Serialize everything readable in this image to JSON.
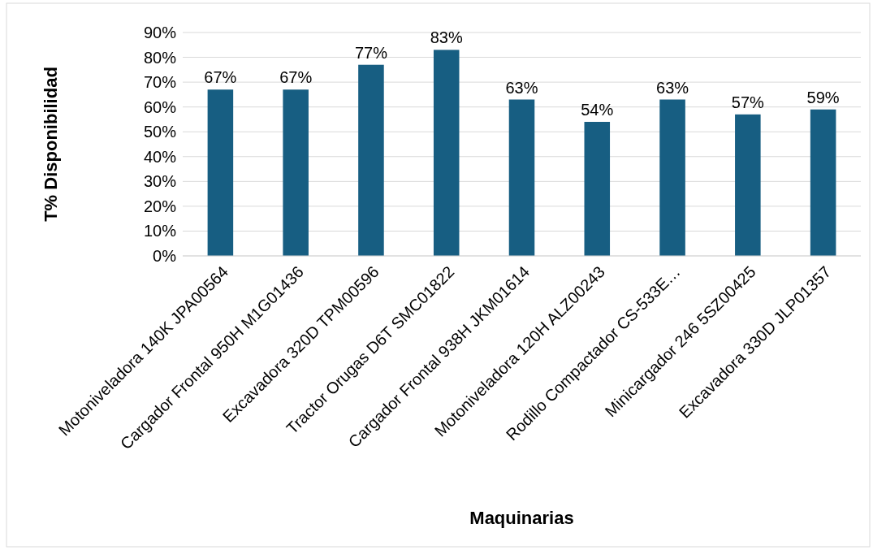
{
  "chart_data": {
    "type": "bar",
    "xlabel": "Maquinarias",
    "ylabel": "T% Disponibilidad",
    "categories": [
      "Motoniveladora 140K JPA00564",
      "Cargador Frontal 950H M1G01436",
      "Excavadora 320D TPM00596",
      "Tractor Orugas D6T SMC01822",
      "Cargador Frontal 938H JKM01614",
      "Motoniveladora 120H ALZ00243",
      "Rodillo Compactador CS-533E…",
      "Minicargador 246 5SZ00425",
      "Excavadora 330D JLP01357"
    ],
    "values": [
      67,
      67,
      77,
      83,
      63,
      54,
      63,
      57,
      59
    ],
    "color": "#175e82",
    "ylim": [
      0,
      90
    ],
    "yticks": [
      {
        "value": 0,
        "label": "0%"
      },
      {
        "value": 10,
        "label": "10%"
      },
      {
        "value": 20,
        "label": "20%"
      },
      {
        "value": 30,
        "label": "30%"
      },
      {
        "value": 40,
        "label": "40%"
      },
      {
        "value": 50,
        "label": "50%"
      },
      {
        "value": 60,
        "label": "60%"
      },
      {
        "value": 70,
        "label": "70%"
      },
      {
        "value": 80,
        "label": "80%"
      },
      {
        "value": 90,
        "label": "90%"
      }
    ],
    "value_labels": [
      "67%",
      "67%",
      "77%",
      "83%",
      "63%",
      "54%",
      "63%",
      "57%",
      "59%"
    ],
    "grid": "y"
  }
}
